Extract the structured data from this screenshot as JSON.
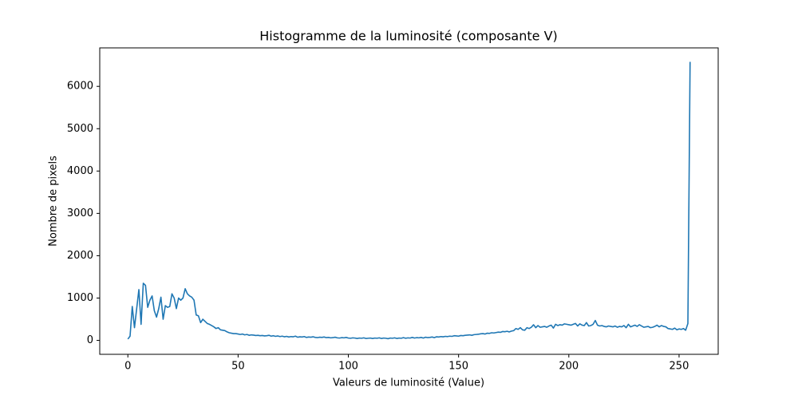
{
  "chart_data": {
    "type": "line",
    "title": "Histogramme de la luminosité (composante V)",
    "xlabel": "Valeurs de luminosité (Value)",
    "ylabel": "Nombre de pixels",
    "x": [
      0,
      1,
      2,
      3,
      4,
      5,
      6,
      7,
      8,
      9,
      10,
      11,
      12,
      13,
      14,
      15,
      16,
      17,
      18,
      19,
      20,
      21,
      22,
      23,
      24,
      25,
      26,
      27,
      28,
      29,
      30,
      31,
      32,
      33,
      34,
      35,
      36,
      37,
      38,
      39,
      40,
      41,
      42,
      43,
      44,
      45,
      46,
      47,
      48,
      49,
      50,
      51,
      52,
      53,
      54,
      55,
      56,
      57,
      58,
      59,
      60,
      61,
      62,
      63,
      64,
      65,
      66,
      67,
      68,
      69,
      70,
      71,
      72,
      73,
      74,
      75,
      76,
      77,
      78,
      79,
      80,
      81,
      82,
      83,
      84,
      85,
      86,
      87,
      88,
      89,
      90,
      91,
      92,
      93,
      94,
      95,
      96,
      97,
      98,
      99,
      100,
      101,
      102,
      103,
      104,
      105,
      106,
      107,
      108,
      109,
      110,
      111,
      112,
      113,
      114,
      115,
      116,
      117,
      118,
      119,
      120,
      121,
      122,
      123,
      124,
      125,
      126,
      127,
      128,
      129,
      130,
      131,
      132,
      133,
      134,
      135,
      136,
      137,
      138,
      139,
      140,
      141,
      142,
      143,
      144,
      145,
      146,
      147,
      148,
      149,
      150,
      151,
      152,
      153,
      154,
      155,
      156,
      157,
      158,
      159,
      160,
      161,
      162,
      163,
      164,
      165,
      166,
      167,
      168,
      169,
      170,
      171,
      172,
      173,
      174,
      175,
      176,
      177,
      178,
      179,
      180,
      181,
      182,
      183,
      184,
      185,
      186,
      187,
      188,
      189,
      190,
      191,
      192,
      193,
      194,
      195,
      196,
      197,
      198,
      199,
      200,
      201,
      202,
      203,
      204,
      205,
      206,
      207,
      208,
      209,
      210,
      211,
      212,
      213,
      214,
      215,
      216,
      217,
      218,
      219,
      220,
      221,
      222,
      223,
      224,
      225,
      226,
      227,
      228,
      229,
      230,
      231,
      232,
      233,
      234,
      235,
      236,
      237,
      238,
      239,
      240,
      241,
      242,
      243,
      244,
      245,
      246,
      247,
      248,
      249,
      250,
      251,
      252,
      253,
      254,
      255
    ],
    "series": [
      {
        "color": "#1f77b4",
        "values": [
          30,
          100,
          800,
          300,
          750,
          1200,
          380,
          1350,
          1300,
          780,
          950,
          1050,
          700,
          550,
          750,
          1020,
          500,
          820,
          780,
          800,
          1100,
          1000,
          750,
          1000,
          950,
          1000,
          1220,
          1100,
          1050,
          1020,
          950,
          600,
          580,
          420,
          500,
          450,
          400,
          380,
          350,
          320,
          280,
          300,
          250,
          240,
          230,
          200,
          180,
          170,
          160,
          160,
          150,
          140,
          150,
          130,
          140,
          120,
          130,
          125,
          115,
          120,
          110,
          115,
          105,
          110,
          120,
          100,
          110,
          95,
          105,
          90,
          100,
          85,
          95,
          80,
          90,
          85,
          100,
          75,
          85,
          80,
          90,
          70,
          80,
          75,
          85,
          70,
          65,
          75,
          70,
          80,
          65,
          70,
          60,
          65,
          75,
          60,
          55,
          65,
          60,
          70,
          55,
          50,
          60,
          55,
          45,
          55,
          50,
          60,
          45,
          50,
          55,
          45,
          55,
          50,
          60,
          45,
          55,
          50,
          40,
          55,
          50,
          60,
          45,
          55,
          50,
          65,
          50,
          60,
          55,
          70,
          55,
          65,
          60,
          70,
          55,
          75,
          65,
          70,
          80,
          65,
          85,
          80,
          90,
          85,
          95,
          90,
          100,
          95,
          110,
          105,
          100,
          115,
          110,
          120,
          125,
          130,
          120,
          135,
          140,
          145,
          155,
          160,
          150,
          170,
          165,
          180,
          175,
          185,
          195,
          190,
          210,
          205,
          215,
          200,
          220,
          230,
          280,
          260,
          300,
          250,
          240,
          300,
          280,
          310,
          370,
          300,
          350,
          310,
          320,
          330,
          310,
          340,
          360,
          290,
          380,
          350,
          370,
          360,
          390,
          380,
          370,
          360,
          380,
          400,
          340,
          390,
          360,
          350,
          420,
          340,
          350,
          380,
          470,
          360,
          340,
          350,
          330,
          320,
          340,
          330,
          320,
          340,
          310,
          330,
          320,
          350,
          300,
          380,
          320,
          340,
          360,
          330,
          370,
          340,
          310,
          320,
          330,
          300,
          310,
          330,
          360,
          320,
          350,
          330,
          320,
          280,
          270,
          260,
          290,
          250,
          270,
          260,
          280,
          240,
          400,
          6580
        ]
      }
    ],
    "xlim": [
      -12.75,
      267.75
    ],
    "ylim": [
      -329,
      6909
    ],
    "xticks": [
      0,
      50,
      100,
      150,
      200,
      250
    ],
    "yticks": [
      0,
      1000,
      2000,
      3000,
      4000,
      5000,
      6000
    ],
    "grid": false
  }
}
